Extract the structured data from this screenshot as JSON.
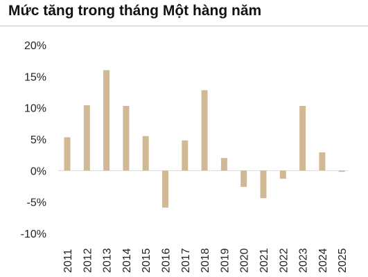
{
  "title": "Mức tăng trong tháng Một hàng năm",
  "colors": {
    "bar": "#d2b995",
    "zero_line": "#d9d9d9",
    "text": "#222222"
  },
  "chart_data": {
    "type": "bar",
    "title": "Mức tăng trong tháng Một hàng năm",
    "xlabel": "",
    "ylabel": "",
    "categories": [
      "2011",
      "2012",
      "2013",
      "2014",
      "2015",
      "2016",
      "2017",
      "2018",
      "2019",
      "2020",
      "2021",
      "2022",
      "2023",
      "2024",
      "2025"
    ],
    "values": [
      5.3,
      10.4,
      16.0,
      10.3,
      5.5,
      -5.9,
      4.8,
      12.8,
      2.0,
      -2.6,
      -4.4,
      -1.3,
      10.3,
      2.9,
      -0.2
    ],
    "ylim": [
      -10,
      20
    ],
    "yticks": [
      20,
      15,
      10,
      5,
      0,
      -5,
      -10
    ],
    "ytick_labels": [
      "20%",
      "15%",
      "10%",
      "5%",
      "0%",
      "-5%",
      "-10%"
    ],
    "grid": false,
    "legend": "none"
  }
}
